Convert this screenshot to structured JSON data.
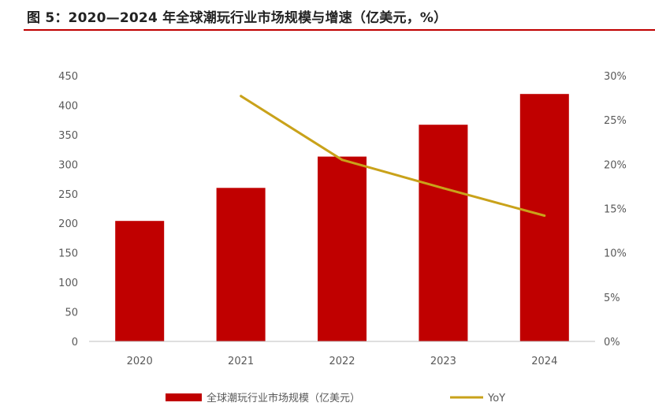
{
  "figure": {
    "title": "图 5：2020—2024 年全球潮玩行业市场规模与增速（亿美元，%）"
  },
  "chart_data": {
    "type": "bar",
    "categories": [
      "2020",
      "2021",
      "2022",
      "2023",
      "2024"
    ],
    "series": [
      {
        "name": "全球潮玩行业市场规模（亿美元）",
        "type": "bar",
        "axis": "left",
        "color": "#c00000",
        "values": [
          204,
          260,
          313,
          367,
          419
        ]
      },
      {
        "name": "YoY",
        "type": "line",
        "axis": "right",
        "color": "#c9a21a",
        "values": [
          null,
          27.7,
          20.5,
          17.3,
          14.2
        ]
      }
    ],
    "y_left": {
      "min": 0,
      "max": 450,
      "step": 50,
      "ticks": [
        "0",
        "50",
        "100",
        "150",
        "200",
        "250",
        "300",
        "350",
        "400",
        "450"
      ]
    },
    "y_right": {
      "min": 0,
      "max": 30,
      "step": 5,
      "ticks": [
        "0%",
        "5%",
        "10%",
        "15%",
        "20%",
        "25%",
        "30%"
      ]
    },
    "grid": false,
    "legend_position": "bottom"
  }
}
